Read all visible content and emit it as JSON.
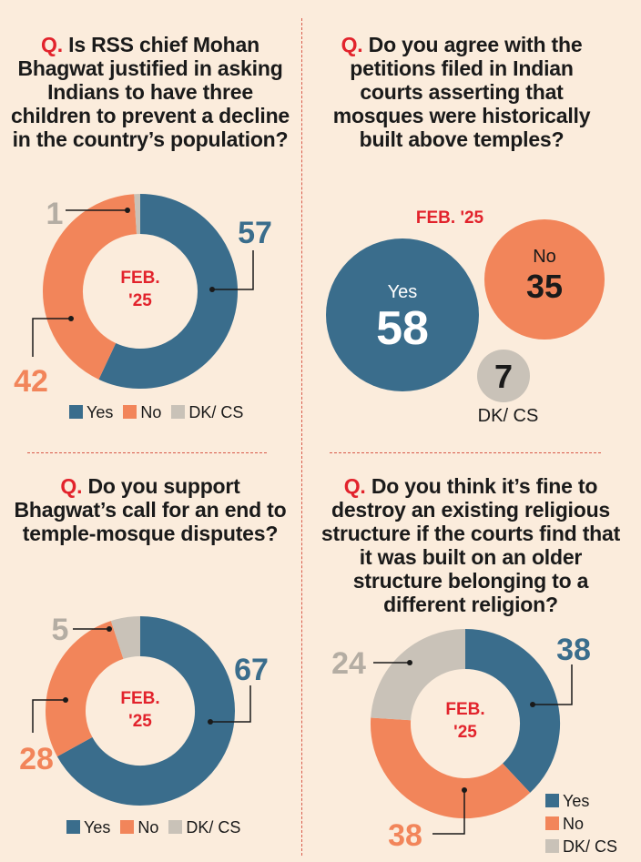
{
  "colors": {
    "yes": "#3a6d8c",
    "no": "#f2855a",
    "dk": "#c9c2b8",
    "accent": "#e2232c"
  },
  "legend": {
    "yes": "Yes",
    "no": "No",
    "dk": "DK/ CS"
  },
  "chart_data": [
    {
      "type": "pie",
      "question_prefix": "Q.",
      "title": "Is RSS chief Mohan Bhagwat justified in asking Indians to have three children to prevent a decline in the country’s population?",
      "center_label_1": "FEB.",
      "center_label_2": "'25",
      "categories": [
        "Yes",
        "No",
        "DK/ CS"
      ],
      "values": [
        57,
        42,
        1
      ],
      "value_labels": [
        "57",
        "42",
        "1"
      ]
    },
    {
      "type": "bubble",
      "question_prefix": "Q.",
      "title": "Do you agree with the petitions filed in Indian courts asserting that mosques were historically built above temples?",
      "period": "FEB. '25",
      "categories": [
        "Yes",
        "No",
        "DK/ CS"
      ],
      "values": [
        58,
        35,
        7
      ],
      "value_labels": [
        "58",
        "35",
        "7"
      ]
    },
    {
      "type": "pie",
      "question_prefix": "Q.",
      "title": "Do you support Bhagwat’s call for an end to temple-mosque disputes?",
      "center_label_1": "FEB.",
      "center_label_2": "'25",
      "categories": [
        "Yes",
        "No",
        "DK/ CS"
      ],
      "values": [
        67,
        28,
        5
      ],
      "value_labels": [
        "67",
        "28",
        "5"
      ]
    },
    {
      "type": "pie",
      "question_prefix": "Q.",
      "title": "Do you think it’s fine to destroy an existing religious structure if the courts find that it was built on an older structure belonging to a different religion?",
      "center_label_1": "FEB.",
      "center_label_2": "'25",
      "categories": [
        "Yes",
        "No",
        "DK/ CS"
      ],
      "values": [
        38,
        38,
        24
      ],
      "value_labels": [
        "38",
        "38",
        "24"
      ]
    }
  ]
}
